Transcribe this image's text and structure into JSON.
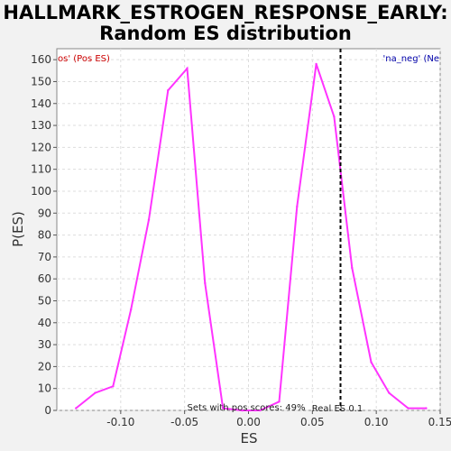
{
  "chart_data": {
    "type": "line",
    "title": "HALLMARK_ESTROGEN_RESPONSE_EARLY:",
    "subtitle": "Random ES distribution",
    "xlabel": "ES",
    "ylabel": "P(ES)",
    "xlim": [
      -0.15,
      0.15
    ],
    "ylim": [
      0,
      165
    ],
    "x_ticks": [
      -0.1,
      -0.05,
      0.0,
      0.05,
      0.1,
      0.15
    ],
    "x_tick_labels": [
      "-0.10",
      "-0.05",
      "0.00",
      "0.05",
      "0.10",
      "0.15"
    ],
    "y_ticks": [
      0,
      10,
      20,
      30,
      40,
      50,
      60,
      70,
      80,
      90,
      100,
      110,
      120,
      130,
      140,
      150,
      160
    ],
    "grid": true,
    "line_color": "#ff33ff",
    "series": [
      {
        "x": [
          -0.135,
          -0.12,
          -0.106,
          -0.092,
          -0.078,
          -0.063,
          -0.048,
          -0.034,
          -0.02,
          -0.005,
          0.009,
          0.024,
          0.038,
          0.053,
          0.067,
          0.081,
          0.096,
          0.11,
          0.125,
          0.139
        ],
        "values": [
          1,
          8,
          11,
          46,
          87,
          146,
          156,
          58,
          1,
          0,
          0,
          4,
          93,
          158,
          134,
          65,
          22,
          8,
          1,
          1
        ]
      }
    ],
    "real_es": 0.072,
    "real_es_label": "Real ES 0.1",
    "legend_left": "os' (Pos ES)",
    "legend_left_color": "#cc0000",
    "legend_right": "'na_neg' (Ne",
    "legend_right_color": "#0000aa",
    "annotation": "Sets with pos scores: 49%"
  }
}
